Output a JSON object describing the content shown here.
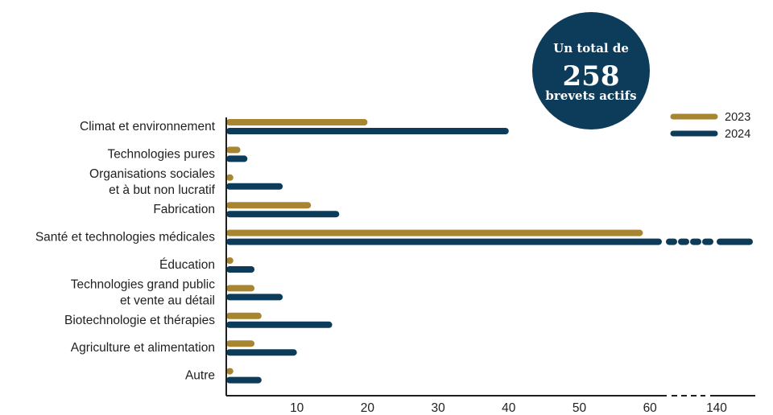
{
  "colors": {
    "y2023": "#a88631",
    "y2024": "#0d3c5a",
    "axis": "#1f1f1f"
  },
  "total_badge": {
    "line1": "Un total de",
    "number": "258",
    "line2": "brevets actifs"
  },
  "chart_data": {
    "type": "bar",
    "orientation": "horizontal",
    "axis_break": true,
    "categories": [
      [
        "Climat et environnement"
      ],
      [
        "Technologies pures"
      ],
      [
        "Organisations sociales",
        "et à but non lucratif"
      ],
      [
        "Fabrication"
      ],
      [
        "Santé et technologies médicales"
      ],
      [
        "Éducation"
      ],
      [
        "Technologies grand public",
        "et vente au détail"
      ],
      [
        "Biotechnologie et thérapies"
      ],
      [
        "Agriculture et alimentation"
      ],
      [
        "Autre"
      ]
    ],
    "series": [
      {
        "name": "2023",
        "values": [
          20,
          2,
          1,
          12,
          59,
          1,
          4,
          5,
          4,
          1
        ]
      },
      {
        "name": "2024",
        "values": [
          40,
          3,
          8,
          16,
          143,
          4,
          8,
          15,
          10,
          5
        ]
      }
    ],
    "x_ticks": [
      "10",
      "20",
      "30",
      "40",
      "50",
      "60",
      "140"
    ],
    "xlim": [
      0,
      143
    ]
  }
}
